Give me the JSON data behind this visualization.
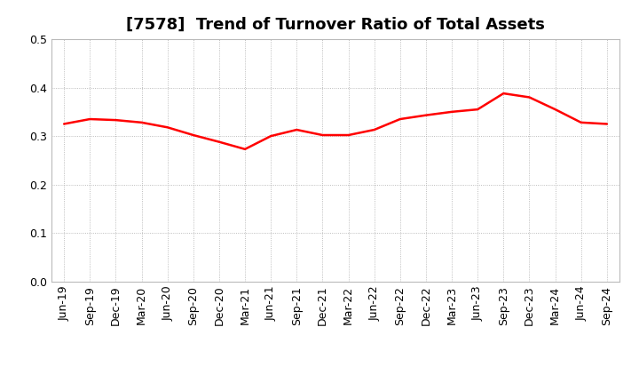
{
  "title": "[7578]  Trend of Turnover Ratio of Total Assets",
  "x_labels": [
    "Jun-19",
    "Sep-19",
    "Dec-19",
    "Mar-20",
    "Jun-20",
    "Sep-20",
    "Dec-20",
    "Mar-21",
    "Jun-21",
    "Sep-21",
    "Dec-21",
    "Mar-22",
    "Jun-22",
    "Sep-22",
    "Dec-22",
    "Mar-23",
    "Jun-23",
    "Sep-23",
    "Dec-23",
    "Mar-24",
    "Jun-24",
    "Sep-24"
  ],
  "values": [
    0.325,
    0.335,
    0.333,
    0.328,
    0.318,
    0.302,
    0.288,
    0.273,
    0.3,
    0.313,
    0.302,
    0.302,
    0.313,
    0.335,
    0.343,
    0.35,
    0.355,
    0.388,
    0.38,
    0.355,
    0.328,
    0.325
  ],
  "line_color": "#FF0000",
  "line_width": 1.8,
  "ylim": [
    0.0,
    0.5
  ],
  "yticks": [
    0.0,
    0.1,
    0.2,
    0.3,
    0.4,
    0.5
  ],
  "grid_color": "#aaaaaa",
  "background_color": "#ffffff",
  "title_fontsize": 13,
  "tick_fontsize": 9
}
